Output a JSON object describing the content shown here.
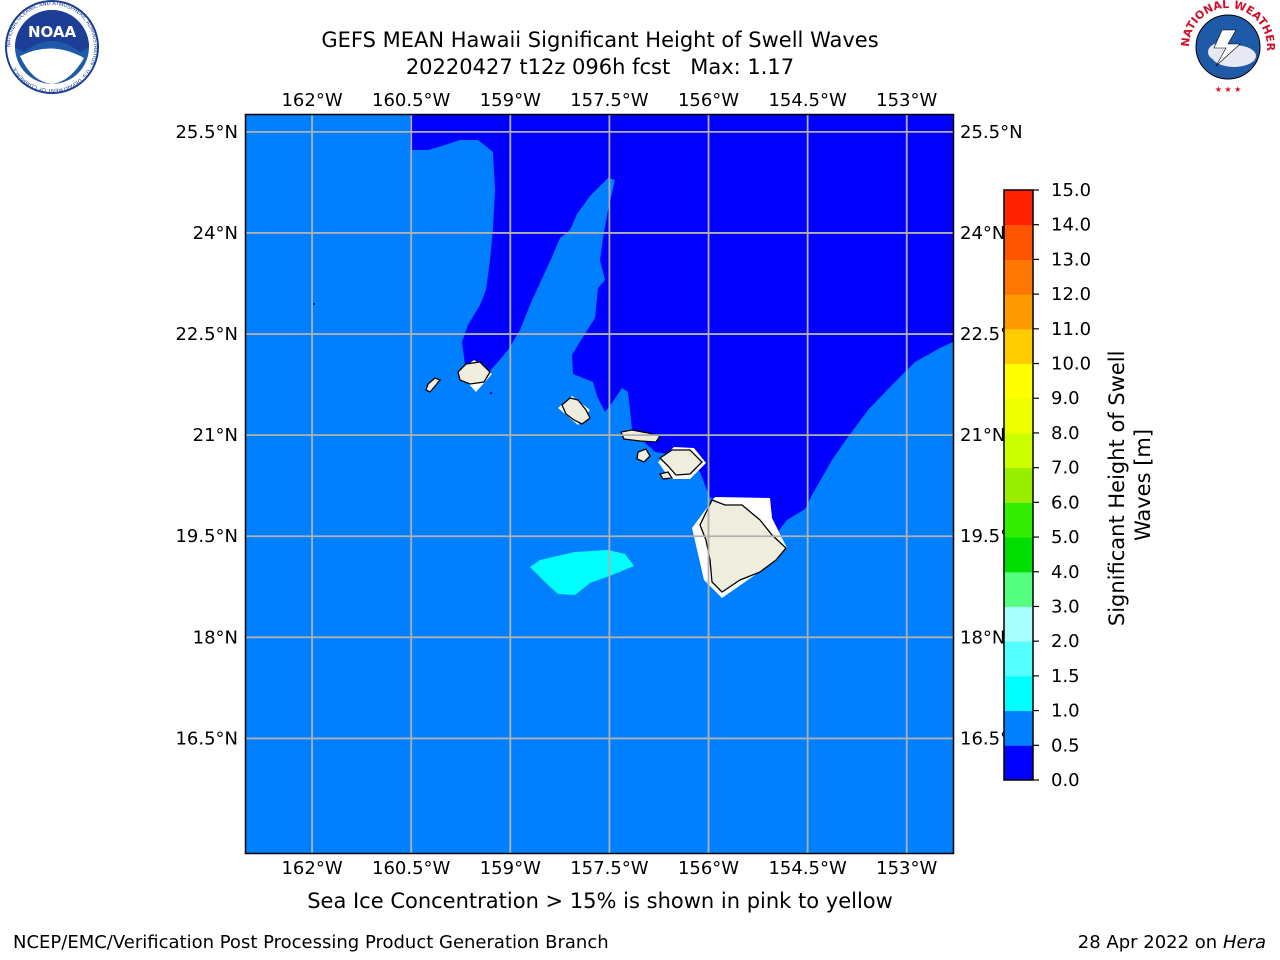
{
  "title_line1": "GEFS MEAN Hawaii Significant Height of Swell Waves",
  "title_line2": "20220427 t12z 096h fcst   Max: 1.17",
  "caption": "Sea Ice Concentration > 15% is shown in pink to yellow",
  "footer_left": "NCEP/EMC/Verification Post Processing Product Generation Branch",
  "footer_right_date": "28 Apr 2022 on ",
  "footer_right_machine": "Hera",
  "logos": {
    "left": "noaa-logo",
    "right": "nws-logo",
    "noaa_text": "NOAA",
    "nws_text": "NATIONAL WEATHER SERVICE",
    "noaa_ring_text": "NATIONAL OCEANIC AND ATMOSPHERIC ADMINISTRATION · U.S. DEPARTMENT OF COMMERCE"
  },
  "map": {
    "lon_ticks": [
      "162°W",
      "160.5°W",
      "159°W",
      "157.5°W",
      "156°W",
      "154.5°W",
      "153°W"
    ],
    "lat_ticks": [
      "25.5°N",
      "24°N",
      "22.5°N",
      "21°N",
      "19.5°N",
      "18°N",
      "16.5°N"
    ],
    "lon_values": [
      -162,
      -160.5,
      -159,
      -157.5,
      -156,
      -154.5,
      -153
    ],
    "lat_values": [
      25.5,
      24,
      22.5,
      21,
      19.5,
      18,
      16.5
    ],
    "lon_range": [
      -163,
      -152.3
    ],
    "lat_range": [
      14.8,
      25.75
    ],
    "colors": {
      "band_0_0_5": "#0000ff",
      "band_0_5_1_0": "#0080ff",
      "band_1_0_1_5": "#00ffff",
      "land": "#efeede",
      "grid": "#b0b0b0"
    }
  },
  "colorbar": {
    "label": "Significant Height of Swell Waves [m]",
    "label_line1": "Significant Height of Swell",
    "label_line2": "Waves [m]",
    "ticks": [
      "0.0",
      "0.5",
      "1.0",
      "1.5",
      "2.0",
      "3.0",
      "4.0",
      "5.0",
      "6.0",
      "7.0",
      "8.0",
      "9.0",
      "10.0",
      "11.0",
      "12.0",
      "13.0",
      "14.0",
      "15.0"
    ],
    "colors": [
      "#0000ff",
      "#0080ff",
      "#00ffff",
      "#55ffff",
      "#aaffff",
      "#55ff7f",
      "#00dd00",
      "#33ee00",
      "#99ee00",
      "#ccff00",
      "#eeff00",
      "#ffff00",
      "#ffcc00",
      "#ff9900",
      "#ff7700",
      "#ff5500",
      "#ff2200"
    ]
  }
}
